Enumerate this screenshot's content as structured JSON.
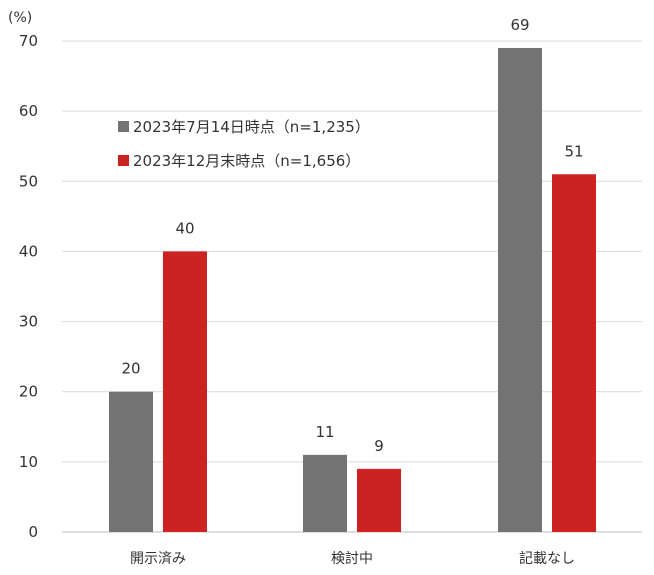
{
  "chart_data": {
    "type": "bar",
    "unit_label": "(%)",
    "categories": [
      "開示済み",
      "検討中",
      "記載なし"
    ],
    "series": [
      {
        "name": "2023年7月14日時点（n=1,235）",
        "values": [
          20,
          11,
          69
        ],
        "color": "#737373"
      },
      {
        "name": "2023年12月末時点（n=1,656）",
        "values": [
          40,
          9,
          51
        ],
        "color": "#cc2222"
      }
    ],
    "data_labels": [
      [
        "20",
        "11",
        "69"
      ],
      [
        "40",
        "9",
        "51"
      ]
    ],
    "yticks": [
      0,
      10,
      20,
      30,
      40,
      50,
      60,
      70
    ],
    "ylim": [
      0,
      70
    ],
    "grid": true,
    "legend_position": "top-left"
  }
}
